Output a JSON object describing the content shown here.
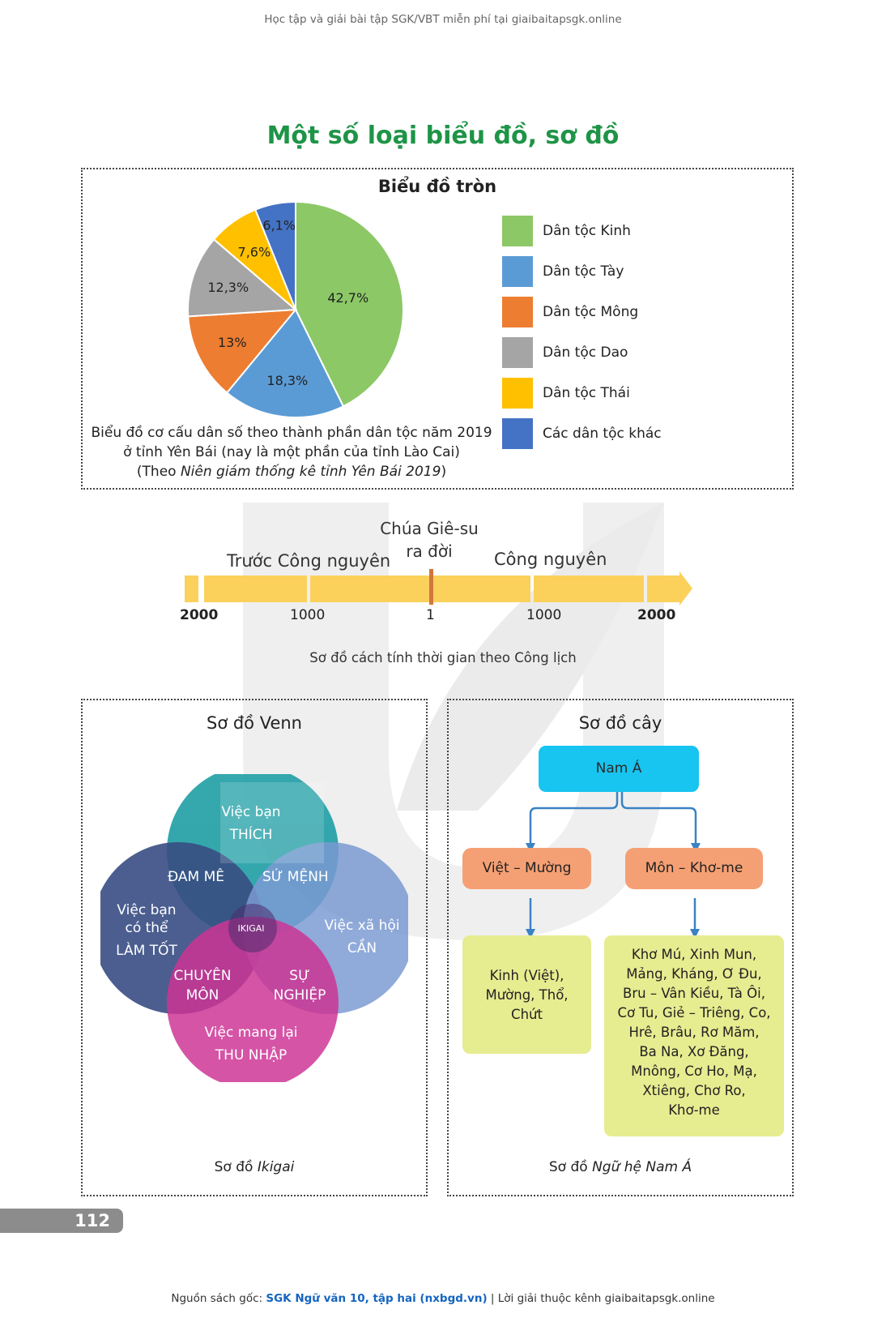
{
  "header_text": "Học tập và giải bài tập SGK/VBT miễn phí tại giaibaitapsgk.online",
  "main_title": "Một số loại biểu đồ, sơ đồ",
  "pie": {
    "title": "Biểu đồ tròn",
    "caption_line1": "Biểu đồ cơ cấu dân số theo thành phần dân tộc năm 2019",
    "caption_line2": "ở tỉnh Yên Bái (nay là một phần của tỉnh Lào Cai)",
    "caption_pre": "(Theo ",
    "caption_italic": "Niên giám thống kê tỉnh Yên Bái 2019",
    "caption_post": ")"
  },
  "chart_data": {
    "type": "pie",
    "title": "Biểu đồ tròn",
    "slices": [
      {
        "label": "Dân tộc Kinh",
        "value": 42.7,
        "display": "42,7%",
        "color": "#8cc866"
      },
      {
        "label": "Dân tộc Tày",
        "value": 18.3,
        "display": "18,3%",
        "color": "#5b9bd5"
      },
      {
        "label": "Dân tộc Mông",
        "value": 13,
        "display": "13%",
        "color": "#ed7d31"
      },
      {
        "label": "Dân tộc Dao",
        "value": 12.3,
        "display": "12,3%",
        "color": "#a5a5a5"
      },
      {
        "label": "Dân tộc Thái",
        "value": 7.6,
        "display": "7,6%",
        "color": "#ffc000"
      },
      {
        "label": "Các dân tộc khác",
        "value": 6.1,
        "display": "6,1%",
        "color": "#4472c4"
      }
    ],
    "legend_position": "right"
  },
  "timeline": {
    "label_left": "Trước Công nguyên",
    "label_mid_line1": "Chúa Giê-su",
    "label_mid_line2": "ra đời",
    "label_right": "Công nguyên",
    "ticks": [
      "2000",
      "1000",
      "1",
      "1000",
      "2000"
    ],
    "caption": "Sơ đồ cách tính thời gian theo Công lịch"
  },
  "venn": {
    "title": "Sơ đồ Venn",
    "top_line1": "Việc bạn",
    "top_line2": "THÍCH",
    "left_line1": "Việc bạn",
    "left_line2": "có thể",
    "left_line3": "LÀM TỐT",
    "right_line1": "Việc xã hội",
    "right_line2": "CẦN",
    "bottom_line1": "Việc mang lại",
    "bottom_line2": "THU NHẬP",
    "passion": "ĐAM MÊ",
    "mission": "SỨ MỆNH",
    "profession_line1": "CHUYÊN",
    "profession_line2": "MÔN",
    "vocation_line1": "SỰ",
    "vocation_line2": "NGHIỆP",
    "center": "IKIGAI",
    "caption_pre": "Sơ đồ ",
    "caption_italic": "Ikigai",
    "colors": {
      "top": "#1f9ea5",
      "left": "#223a75",
      "right": "#6f91cf",
      "bottom": "#c8208a"
    }
  },
  "tree": {
    "title": "Sơ đồ cây",
    "root": "Nam Á",
    "branch_left": "Việt – Mường",
    "branch_right": "Môn – Khơ-me",
    "leaf_left_lines": [
      "Kinh (Việt),",
      "Mường, Thổ,",
      "Chứt"
    ],
    "leaf_right_lines": [
      "Khơ Mú, Xinh Mun,",
      "Mảng, Kháng, Ơ Đu,",
      "Bru – Vân Kiều, Tà Ôi,",
      "Cơ Tu, Giẻ – Triêng, Co,",
      "Hrê, Brâu, Rơ Măm,",
      "Ba Na, Xơ Đăng,",
      "Mnông, Cơ Ho, Mạ,",
      "Xtiêng, Chơ Ro,",
      "Khơ-me"
    ],
    "caption_pre": "Sơ đồ ",
    "caption_italic": "Ngữ hệ Nam Á"
  },
  "page_number": "112",
  "footer": {
    "prefix": "Nguồn sách gốc: ",
    "link_text": "SGK Ngữ văn 10, tập hai (nxbgd.vn)",
    "suffix": " | Lời giải thuộc kênh giaibaitapsgk.online"
  }
}
